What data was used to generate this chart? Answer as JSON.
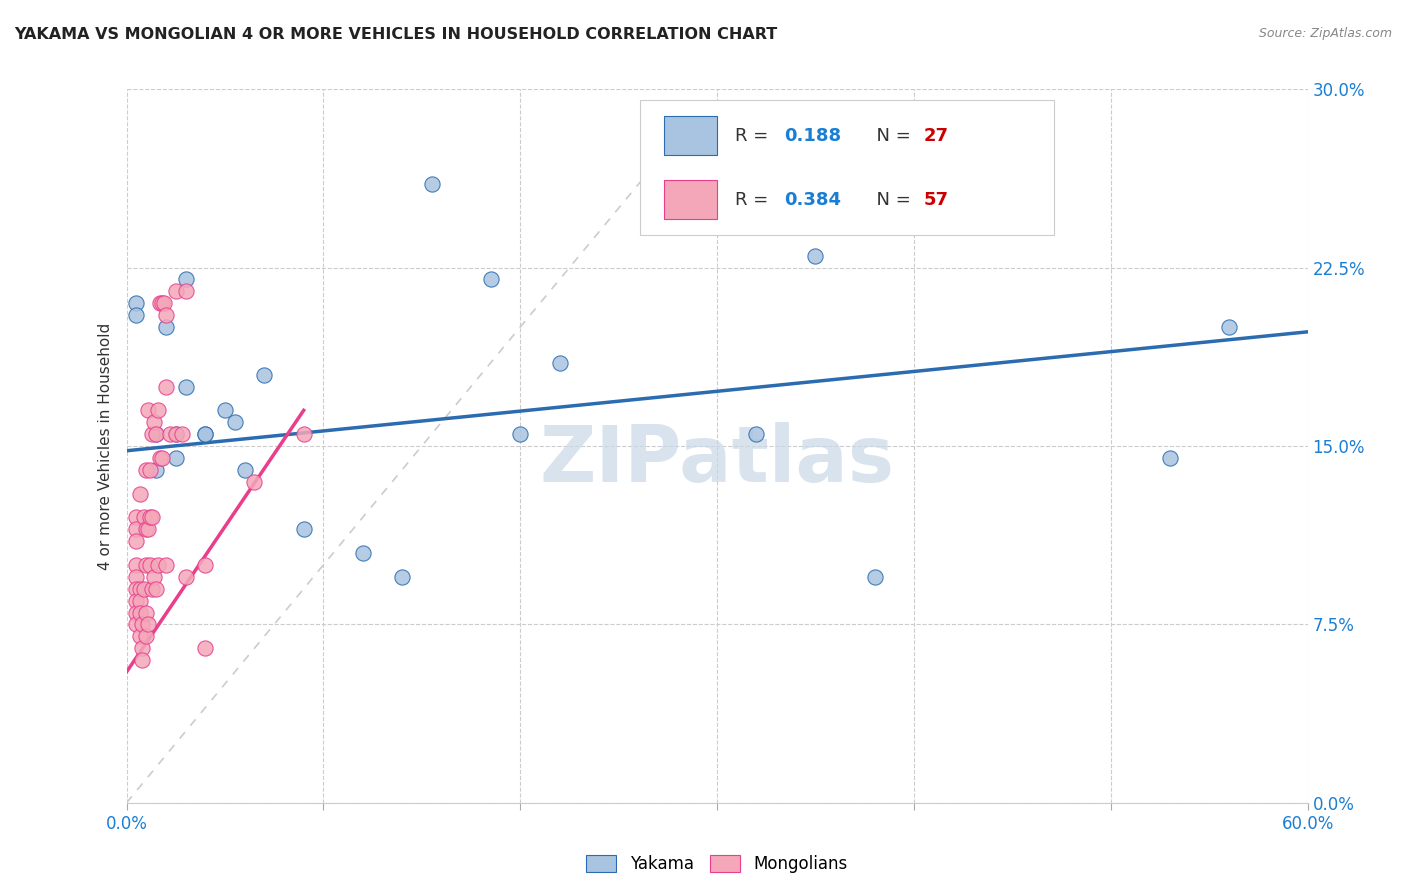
{
  "title": "YAKAMA VS MONGOLIAN 4 OR MORE VEHICLES IN HOUSEHOLD CORRELATION CHART",
  "source": "Source: ZipAtlas.com",
  "ylabel": "4 or more Vehicles in Household",
  "xlim": [
    0.0,
    0.6
  ],
  "ylim": [
    0.0,
    0.3
  ],
  "xticks": [
    0.0,
    0.1,
    0.2,
    0.3,
    0.4,
    0.5,
    0.6
  ],
  "yticks": [
    0.0,
    0.075,
    0.15,
    0.225,
    0.3
  ],
  "ytick_labels_right": [
    "0.0%",
    "7.5%",
    "15.0%",
    "22.5%",
    "30.0%"
  ],
  "xtick_labels_show": [
    "0.0%",
    "",
    "",
    "",
    "",
    "",
    "60.0%"
  ],
  "yakama_color": "#a8c4e0",
  "mongolian_color": "#f4a7b9",
  "trendline_yakama_color": "#2b6cb0",
  "trendline_mongolian_color": "#e83e8c",
  "diagonal_color": "#cccccc",
  "legend_r_color": "#1a7fd4",
  "legend_n_color": "#cc0000",
  "watermark": "ZIPatlas",
  "watermark_color": "#c8d8e8",
  "R_yakama": 0.188,
  "N_yakama": 27,
  "R_mongolian": 0.384,
  "N_mongolian": 57,
  "yakama_x": [
    0.005,
    0.005,
    0.02,
    0.03,
    0.03,
    0.04,
    0.04,
    0.05,
    0.055,
    0.07,
    0.09,
    0.12,
    0.14,
    0.155,
    0.185,
    0.2,
    0.22,
    0.32,
    0.35,
    0.38,
    0.53,
    0.56,
    0.015,
    0.015,
    0.025,
    0.025,
    0.06
  ],
  "yakama_y": [
    0.21,
    0.205,
    0.2,
    0.22,
    0.175,
    0.155,
    0.155,
    0.165,
    0.16,
    0.18,
    0.115,
    0.105,
    0.095,
    0.26,
    0.22,
    0.155,
    0.185,
    0.155,
    0.23,
    0.095,
    0.145,
    0.2,
    0.155,
    0.14,
    0.155,
    0.145,
    0.14
  ],
  "mongolian_x": [
    0.005,
    0.005,
    0.005,
    0.005,
    0.005,
    0.005,
    0.005,
    0.005,
    0.005,
    0.007,
    0.007,
    0.007,
    0.007,
    0.007,
    0.008,
    0.008,
    0.008,
    0.009,
    0.009,
    0.01,
    0.01,
    0.01,
    0.01,
    0.01,
    0.011,
    0.011,
    0.011,
    0.012,
    0.012,
    0.012,
    0.013,
    0.013,
    0.013,
    0.014,
    0.014,
    0.015,
    0.015,
    0.016,
    0.016,
    0.017,
    0.017,
    0.018,
    0.018,
    0.019,
    0.02,
    0.02,
    0.02,
    0.022,
    0.025,
    0.025,
    0.028,
    0.03,
    0.03,
    0.04,
    0.04,
    0.065,
    0.09
  ],
  "mongolian_y": [
    0.12,
    0.115,
    0.11,
    0.1,
    0.095,
    0.09,
    0.085,
    0.08,
    0.075,
    0.13,
    0.09,
    0.085,
    0.08,
    0.07,
    0.075,
    0.065,
    0.06,
    0.12,
    0.09,
    0.14,
    0.115,
    0.1,
    0.08,
    0.07,
    0.165,
    0.115,
    0.075,
    0.14,
    0.12,
    0.1,
    0.155,
    0.12,
    0.09,
    0.16,
    0.095,
    0.155,
    0.09,
    0.165,
    0.1,
    0.21,
    0.145,
    0.21,
    0.145,
    0.21,
    0.205,
    0.175,
    0.1,
    0.155,
    0.215,
    0.155,
    0.155,
    0.215,
    0.095,
    0.1,
    0.065,
    0.135,
    0.155
  ],
  "trendline_yakama_x0": 0.0,
  "trendline_yakama_x1": 0.6,
  "trendline_yakama_y0": 0.148,
  "trendline_yakama_y1": 0.198,
  "trendline_mongolian_x0": 0.0,
  "trendline_mongolian_x1": 0.09,
  "trendline_mongolian_y0": 0.055,
  "trendline_mongolian_y1": 0.165
}
